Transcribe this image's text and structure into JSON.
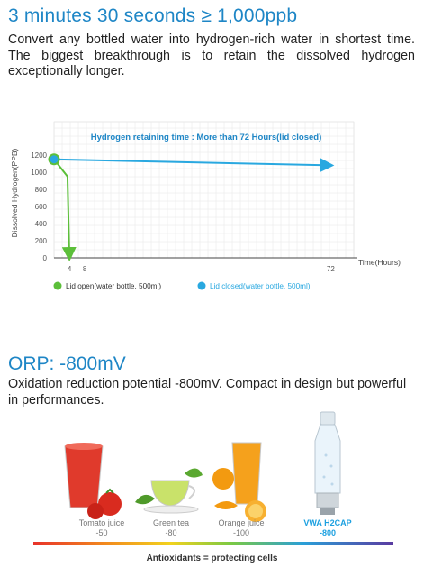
{
  "section1": {
    "title": "3 minutes 30 seconds ≥ 1,000ppb",
    "body": "Convert any bottled water into hydrogen-rich water in shortest time.  The biggest breakthrough is to retain the dissolved hydrogen exceptionally longer."
  },
  "chart_data": {
    "type": "line",
    "title": "Hydrogen retaining time : More than 72 Hours(lid closed)",
    "ylabel": "Dissolved Hydrogen(PPB)",
    "xlabel": "Time(Hours)",
    "ylim": [
      0,
      1200
    ],
    "y_ticks": [
      "0",
      "200",
      "400",
      "600",
      "800",
      "1000",
      "1200"
    ],
    "x_ticks": [
      4,
      8,
      72
    ],
    "grid": true,
    "legend_position": "bottom",
    "series": [
      {
        "name": "Lid open(water bottle, 500ml)",
        "color": "#5cbf3a",
        "points": [
          [
            0,
            1150
          ],
          [
            3.5,
            950
          ],
          [
            4,
            0
          ]
        ]
      },
      {
        "name": "Lid closed(water bottle, 500ml)",
        "color": "#29a8e0",
        "points": [
          [
            0,
            1150
          ],
          [
            72,
            1080
          ]
        ]
      }
    ]
  },
  "section2": {
    "title": "ORP: -800mV",
    "body": "Oxidation reduction potential -800mV.  Compact in design but powerful in performances."
  },
  "drinks": [
    {
      "name": "Tomato juice",
      "value": "-50"
    },
    {
      "name": "Green tea",
      "value": "-80"
    },
    {
      "name": "Orange juice",
      "value": "-100"
    },
    {
      "name": "VWA H2CAP",
      "value": "-800"
    }
  ],
  "colors": {
    "heading": "#1e86c6",
    "lid_open": "#5cbf3a",
    "lid_closed": "#29a8e0"
  },
  "footer": "Antioxidants = protecting cells"
}
